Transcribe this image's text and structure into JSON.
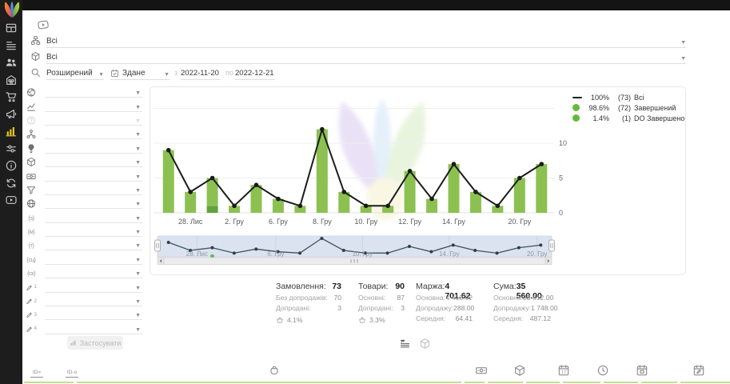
{
  "sidebar": {
    "items": [
      {
        "name": "dashboard"
      },
      {
        "name": "orders"
      },
      {
        "name": "customers"
      },
      {
        "name": "warehouse"
      },
      {
        "name": "purchases"
      },
      {
        "name": "marketing"
      },
      {
        "name": "analytics",
        "active": true
      },
      {
        "name": "settings"
      },
      {
        "name": "info"
      },
      {
        "name": "sync"
      },
      {
        "name": "video"
      }
    ]
  },
  "filters": {
    "status_filter": {
      "value": "Всі"
    },
    "product_filter": {
      "value": "Всі"
    },
    "search_mode": {
      "value": "Розширений"
    },
    "date_type": {
      "value": "Здане"
    },
    "date_from_label": "з",
    "date_from": "2022-11-20",
    "date_to_label": "по",
    "date_to": "2022-12-21",
    "panel_rows": [
      {
        "icon": "earth"
      },
      {
        "icon": "trend"
      },
      {
        "icon": "question",
        "disabled": true
      },
      {
        "icon": "network"
      },
      {
        "icon": "bulb"
      },
      {
        "icon": "cube"
      },
      {
        "icon": "banknote"
      },
      {
        "icon": "funnel"
      },
      {
        "icon": "globe"
      },
      {
        "icon": "utm-source",
        "text": "{s}"
      },
      {
        "icon": "utm-medium",
        "text": "{м}"
      },
      {
        "icon": "utm-term",
        "text": "{т}"
      },
      {
        "icon": "utm-campaign",
        "text": "{сц}"
      },
      {
        "icon": "utm-content",
        "text": "{ск}"
      },
      {
        "icon": "pencil",
        "sub": "1"
      },
      {
        "icon": "pencil",
        "sub": "2"
      },
      {
        "icon": "pencil",
        "sub": "3"
      },
      {
        "icon": "pencil",
        "sub": "4"
      }
    ],
    "apply_label": "Застосувати"
  },
  "chart_data": {
    "type": "bar+line",
    "categories": [
      "",
      "28. Лис",
      "",
      "2. Гру",
      "",
      "6. Гру",
      "",
      "8. Гру",
      "",
      "10. Гру",
      "",
      "12. Гру",
      "",
      "14. Гру",
      "",
      "",
      "20. Гру",
      ""
    ],
    "series": [
      {
        "name": "Всі",
        "type": "line",
        "color": "#1b1b1b",
        "values": [
          9,
          3,
          5,
          1,
          4,
          2,
          1,
          12,
          3,
          1,
          1,
          6,
          2,
          7,
          3,
          1,
          5,
          7
        ]
      },
      {
        "name": "Завершений",
        "type": "bar",
        "color": "#8cc152",
        "values": [
          9,
          3,
          4,
          1,
          4,
          2,
          1,
          12,
          3,
          1,
          1,
          6,
          2,
          7,
          3,
          1,
          5,
          7
        ]
      },
      {
        "name": "DO Завершено",
        "type": "bar",
        "color": "#5fa33c",
        "values": [
          0,
          0,
          1,
          0,
          0,
          0,
          0,
          0,
          0,
          0,
          0,
          0,
          0,
          0,
          0,
          0,
          0,
          0
        ]
      }
    ],
    "ylim": [
      0,
      13
    ],
    "yticks": [
      0,
      5,
      10
    ],
    "gridlines": [
      0,
      5,
      10,
      15
    ],
    "legend_position": "top-right",
    "legend": [
      {
        "swatch": "line",
        "color": "#1b1b1b",
        "percent": "100%",
        "count": "(73)",
        "label": "Всі"
      },
      {
        "swatch": "dot",
        "color": "#64ba3d",
        "percent": "98.6%",
        "count": "(72)",
        "label": "Завершений"
      },
      {
        "swatch": "dot",
        "color": "#64ba3d",
        "percent": "1.4%",
        "count": "(1)",
        "label": "DO Завершено"
      }
    ],
    "navigator": {
      "labels": [
        {
          "text": "28. Лис",
          "f": 0.1
        },
        {
          "text": "6. Гру",
          "f": 0.3
        },
        {
          "text": "10. Гру",
          "f": 0.52
        },
        {
          "text": "14. Гру",
          "f": 0.74
        },
        {
          "text": "20. Гру",
          "f": 0.963
        }
      ]
    }
  },
  "stats": {
    "columns": [
      {
        "title": "Замовлення:",
        "value": "73",
        "rows": [
          {
            "label": "Без допродажів:",
            "value": "70"
          },
          {
            "label": "Допродані:",
            "value": "3"
          }
        ],
        "upsell_share": "4.1%"
      },
      {
        "title": "Товари:",
        "value": "90",
        "rows": [
          {
            "label": "Основні:",
            "value": "87"
          },
          {
            "label": "Допродані:",
            "value": "3"
          }
        ],
        "upsell_share": "3.3%"
      },
      {
        "title": "Маржа:",
        "value": "4 701.62",
        "rows": [
          {
            "label": "Основна:",
            "value": "4 413.62"
          },
          {
            "label": "Допродажу:",
            "value": "288.00"
          },
          {
            "label": "Середня:",
            "value": "64.41"
          }
        ]
      },
      {
        "title": "Сума:",
        "value": "35 560.00",
        "rows": [
          {
            "label": "Основна:",
            "value": "33 812.00"
          },
          {
            "label": "Допродажу:",
            "value": "1 748.00"
          },
          {
            "label": "Середня:",
            "value": "487.12"
          }
        ]
      }
    ]
  },
  "view_toggle": [
    {
      "icon": "liststats",
      "name": "view-by-orders",
      "active": true
    },
    {
      "icon": "cube",
      "name": "view-by-products",
      "active": false
    }
  ],
  "bottombar": [
    {
      "icon": "group-id",
      "text": "ID="
    },
    {
      "icon": "group-id-alt",
      "text": "ID-o"
    },
    {
      "icon": "bag"
    },
    {
      "icon": "banknote"
    },
    {
      "icon": "cube"
    },
    {
      "icon": "caldate"
    },
    {
      "icon": "clock"
    },
    {
      "icon": "calimport"
    },
    {
      "icon": "caledit"
    }
  ]
}
